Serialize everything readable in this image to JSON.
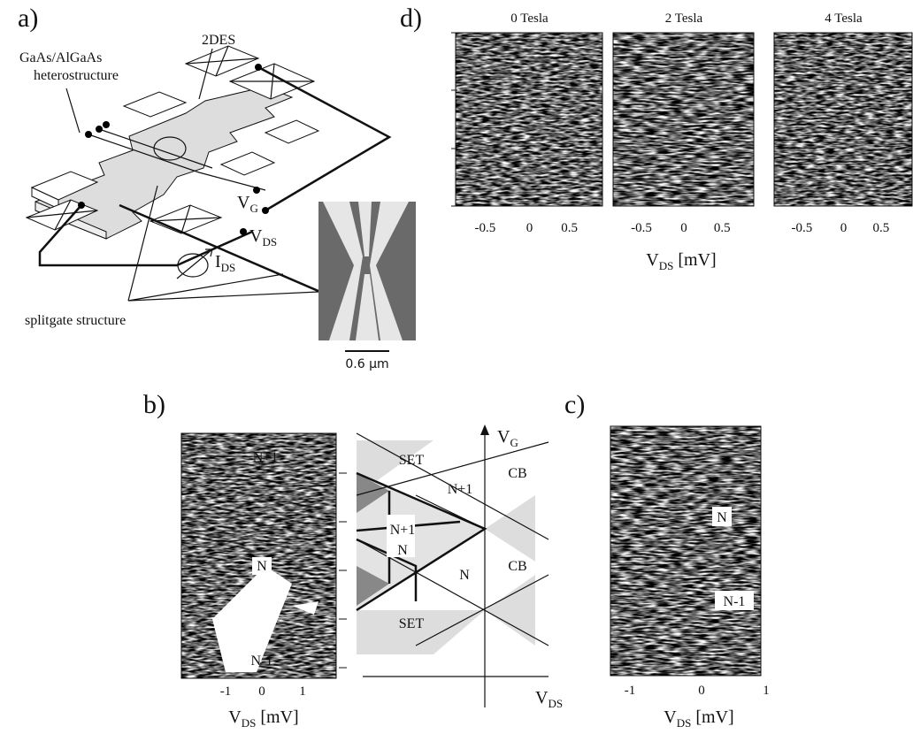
{
  "panel_a": {
    "label": "a)",
    "material": [
      "GaAs/AlGaAs",
      "heterostructure"
    ],
    "layer": "2DES",
    "gate_voltage": {
      "symbol": "V",
      "sub": "G"
    },
    "drain_voltage": {
      "symbol": "V",
      "sub": "DS"
    },
    "current": {
      "symbol": "I",
      "sub": "DS"
    },
    "splitgate": "splitgate structure",
    "scale_bar": "0.6 µm"
  },
  "panel_b": {
    "label": "b)",
    "x_ticks": [
      "-1",
      "0",
      "1"
    ],
    "x_label": {
      "symbol": "V",
      "sub": "DS",
      "unit": "[mV]"
    },
    "regions": [
      "N+1",
      "N",
      "N-1"
    ],
    "diagram": {
      "labels": [
        "SET",
        "N+1",
        "CB",
        "N+1",
        "N",
        "N",
        "CB",
        "SET"
      ],
      "y_axis": {
        "symbol": "V",
        "sub": "G"
      },
      "x_axis": {
        "symbol": "V",
        "sub": "DS"
      }
    }
  },
  "panel_c": {
    "label": "c)",
    "x_ticks": [
      "-1",
      "0",
      "1"
    ],
    "x_label": {
      "symbol": "V",
      "sub": "DS",
      "unit": "[mV]"
    },
    "regions": [
      "N",
      "N-1"
    ]
  },
  "panel_d": {
    "label": "d)",
    "titles": [
      "0 Tesla",
      "2 Tesla",
      "4 Tesla"
    ],
    "x_ticks": [
      "-0.5",
      "0",
      "0.5"
    ],
    "x_label": {
      "symbol": "V",
      "sub": "DS",
      "unit": "[mV]"
    }
  }
}
